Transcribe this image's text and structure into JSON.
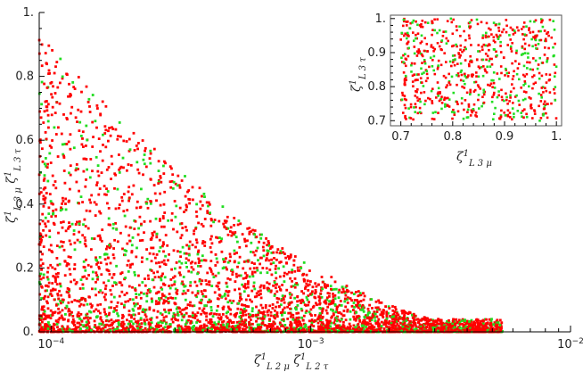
{
  "chart_data": [
    {
      "type": "scatter",
      "title": "",
      "xlabel": "ζ¹L2μ ζ¹L2τ",
      "ylabel": "ζ¹L3μ ζ¹L3τ",
      "xscale": "log",
      "xlim": [
        9e-05,
        0.01
      ],
      "ylim": [
        0,
        1.0
      ],
      "x_ticks": [
        {
          "value": 0.0001,
          "base": "10",
          "exp": "−4"
        },
        {
          "value": 0.001,
          "base": "10",
          "exp": "−3"
        },
        {
          "value": 0.01,
          "base": "10",
          "exp": "−2"
        }
      ],
      "y_ticks": [
        {
          "value": 0.0,
          "label": "0."
        },
        {
          "value": 0.2,
          "label": "0.2"
        },
        {
          "value": 0.4,
          "label": "0.4"
        },
        {
          "value": 0.6,
          "label": "0.6"
        },
        {
          "value": 0.8,
          "label": "0.8"
        },
        {
          "value": 1.0,
          "label": "1."
        }
      ],
      "grid": false,
      "series": [
        {
          "color": "#ff0000",
          "x_range": [
            9e-05,
            0.0055
          ],
          "y_range": [
            0.0,
            0.95
          ],
          "distribution": "dense near y=0, decreasing with x"
        },
        {
          "color": "#22dd22",
          "x_range": [
            9e-05,
            0.005
          ],
          "y_range": [
            0.0,
            0.95
          ],
          "distribution": "sparser, interleaved"
        }
      ]
    },
    {
      "type": "scatter",
      "inset": true,
      "xlabel": "ζ¹L3μ",
      "ylabel": "ζ¹L3τ",
      "xlim": [
        0.68,
        1.01
      ],
      "ylim": [
        0.685,
        1.01
      ],
      "x_ticks": [
        {
          "value": 0.7,
          "label": "0.7"
        },
        {
          "value": 0.8,
          "label": "0.8"
        },
        {
          "value": 0.9,
          "label": "0.9"
        },
        {
          "value": 1.0,
          "label": "1."
        }
      ],
      "y_ticks": [
        {
          "value": 0.7,
          "label": "0.7"
        },
        {
          "value": 0.8,
          "label": "0.8"
        },
        {
          "value": 0.9,
          "label": "0.9"
        },
        {
          "value": 1.0,
          "label": "1."
        }
      ],
      "series": [
        {
          "color": "#ff0000",
          "x_range": [
            0.7,
            1.0
          ],
          "y_range": [
            0.7,
            1.0
          ],
          "distribution": "uniform"
        },
        {
          "color": "#22dd22",
          "x_range": [
            0.7,
            1.0
          ],
          "y_range": [
            0.7,
            1.0
          ],
          "distribution": "uniform"
        }
      ]
    }
  ]
}
